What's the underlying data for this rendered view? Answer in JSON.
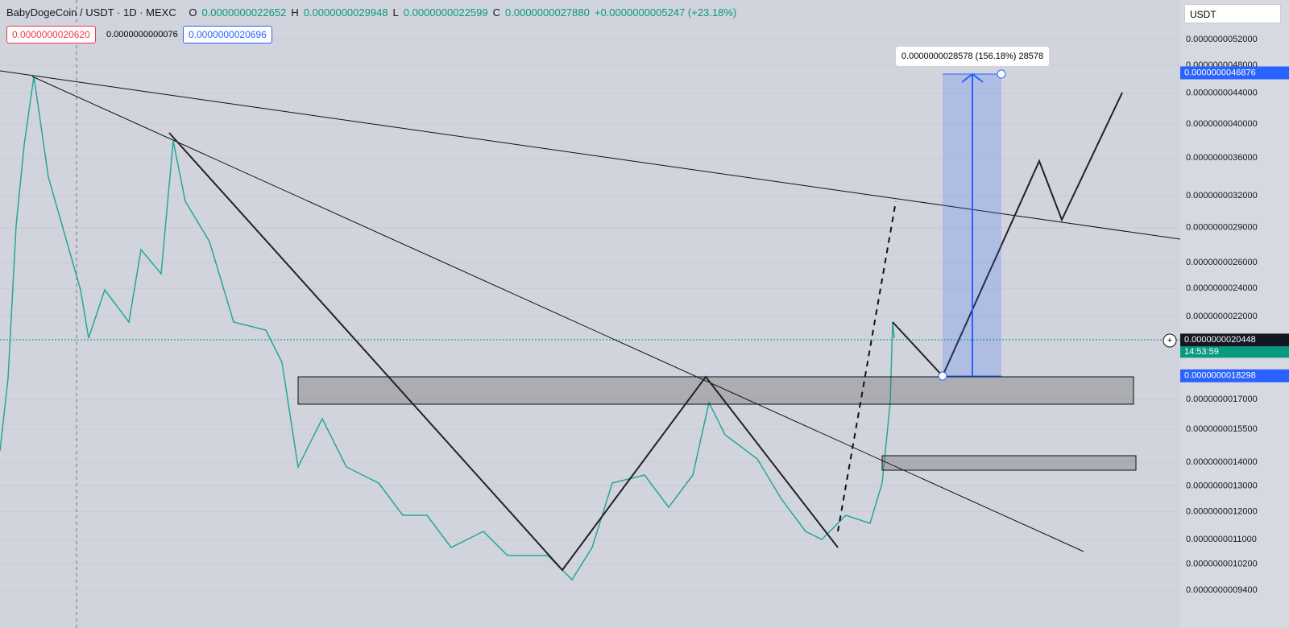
{
  "header": {
    "symbol": "BabyDogeCoin / USDT · 1D · MEXC",
    "open_label": "O",
    "open": "0.0000000022652",
    "high_label": "H",
    "high": "0.0000000029948",
    "low_label": "L",
    "low": "0.0000000022599",
    "close_label": "C",
    "close": "0.0000000027880",
    "change": "+0.0000000005247 (+23.18%)",
    "sell": "0.0000000020620",
    "spread": "0.0000000000076",
    "buy": "0.0000000020696",
    "currency": "USDT"
  },
  "price_axis": {
    "scale": "log",
    "ticks": [
      {
        "value": 5.2e-09,
        "label": "0.0000000052000"
      },
      {
        "value": 4.8e-09,
        "label": "0.0000000048000"
      },
      {
        "value": 4.4e-09,
        "label": "0.0000000044000"
      },
      {
        "value": 4e-09,
        "label": "0.0000000040000"
      },
      {
        "value": 3.6e-09,
        "label": "0.0000000036000"
      },
      {
        "value": 3.2e-09,
        "label": "0.0000000032000"
      },
      {
        "value": 2.9e-09,
        "label": "0.0000000029000"
      },
      {
        "value": 2.6e-09,
        "label": "0.0000000026000"
      },
      {
        "value": 2.4e-09,
        "label": "0.0000000024000"
      },
      {
        "value": 2.2e-09,
        "label": "0.0000000022000"
      },
      {
        "value": 1.7e-09,
        "label": "0.0000000017000"
      },
      {
        "value": 1.55e-09,
        "label": "0.0000000015500"
      },
      {
        "value": 1.4e-09,
        "label": "0.0000000014000"
      },
      {
        "value": 1.3e-09,
        "label": "0.0000000013000"
      },
      {
        "value": 1.2e-09,
        "label": "0.0000000012000"
      },
      {
        "value": 1.1e-09,
        "label": "0.0000000011000"
      },
      {
        "value": 1.02e-09,
        "label": "0.0000000010200"
      },
      {
        "value": 9.4e-10,
        "label": "0.0000000009400"
      }
    ],
    "markers": [
      {
        "value": 4.6876e-09,
        "label": "0.0000000046876",
        "kind": "target"
      },
      {
        "value": 2.0448e-09,
        "label": "0.0000000020448",
        "kind": "last"
      },
      {
        "value": 1.8298e-09,
        "label": "0.0000000018298",
        "kind": "target"
      }
    ],
    "countdown": "14:53:59"
  },
  "measure_label": "0.0000000028578 (156.18%) 28578"
}
